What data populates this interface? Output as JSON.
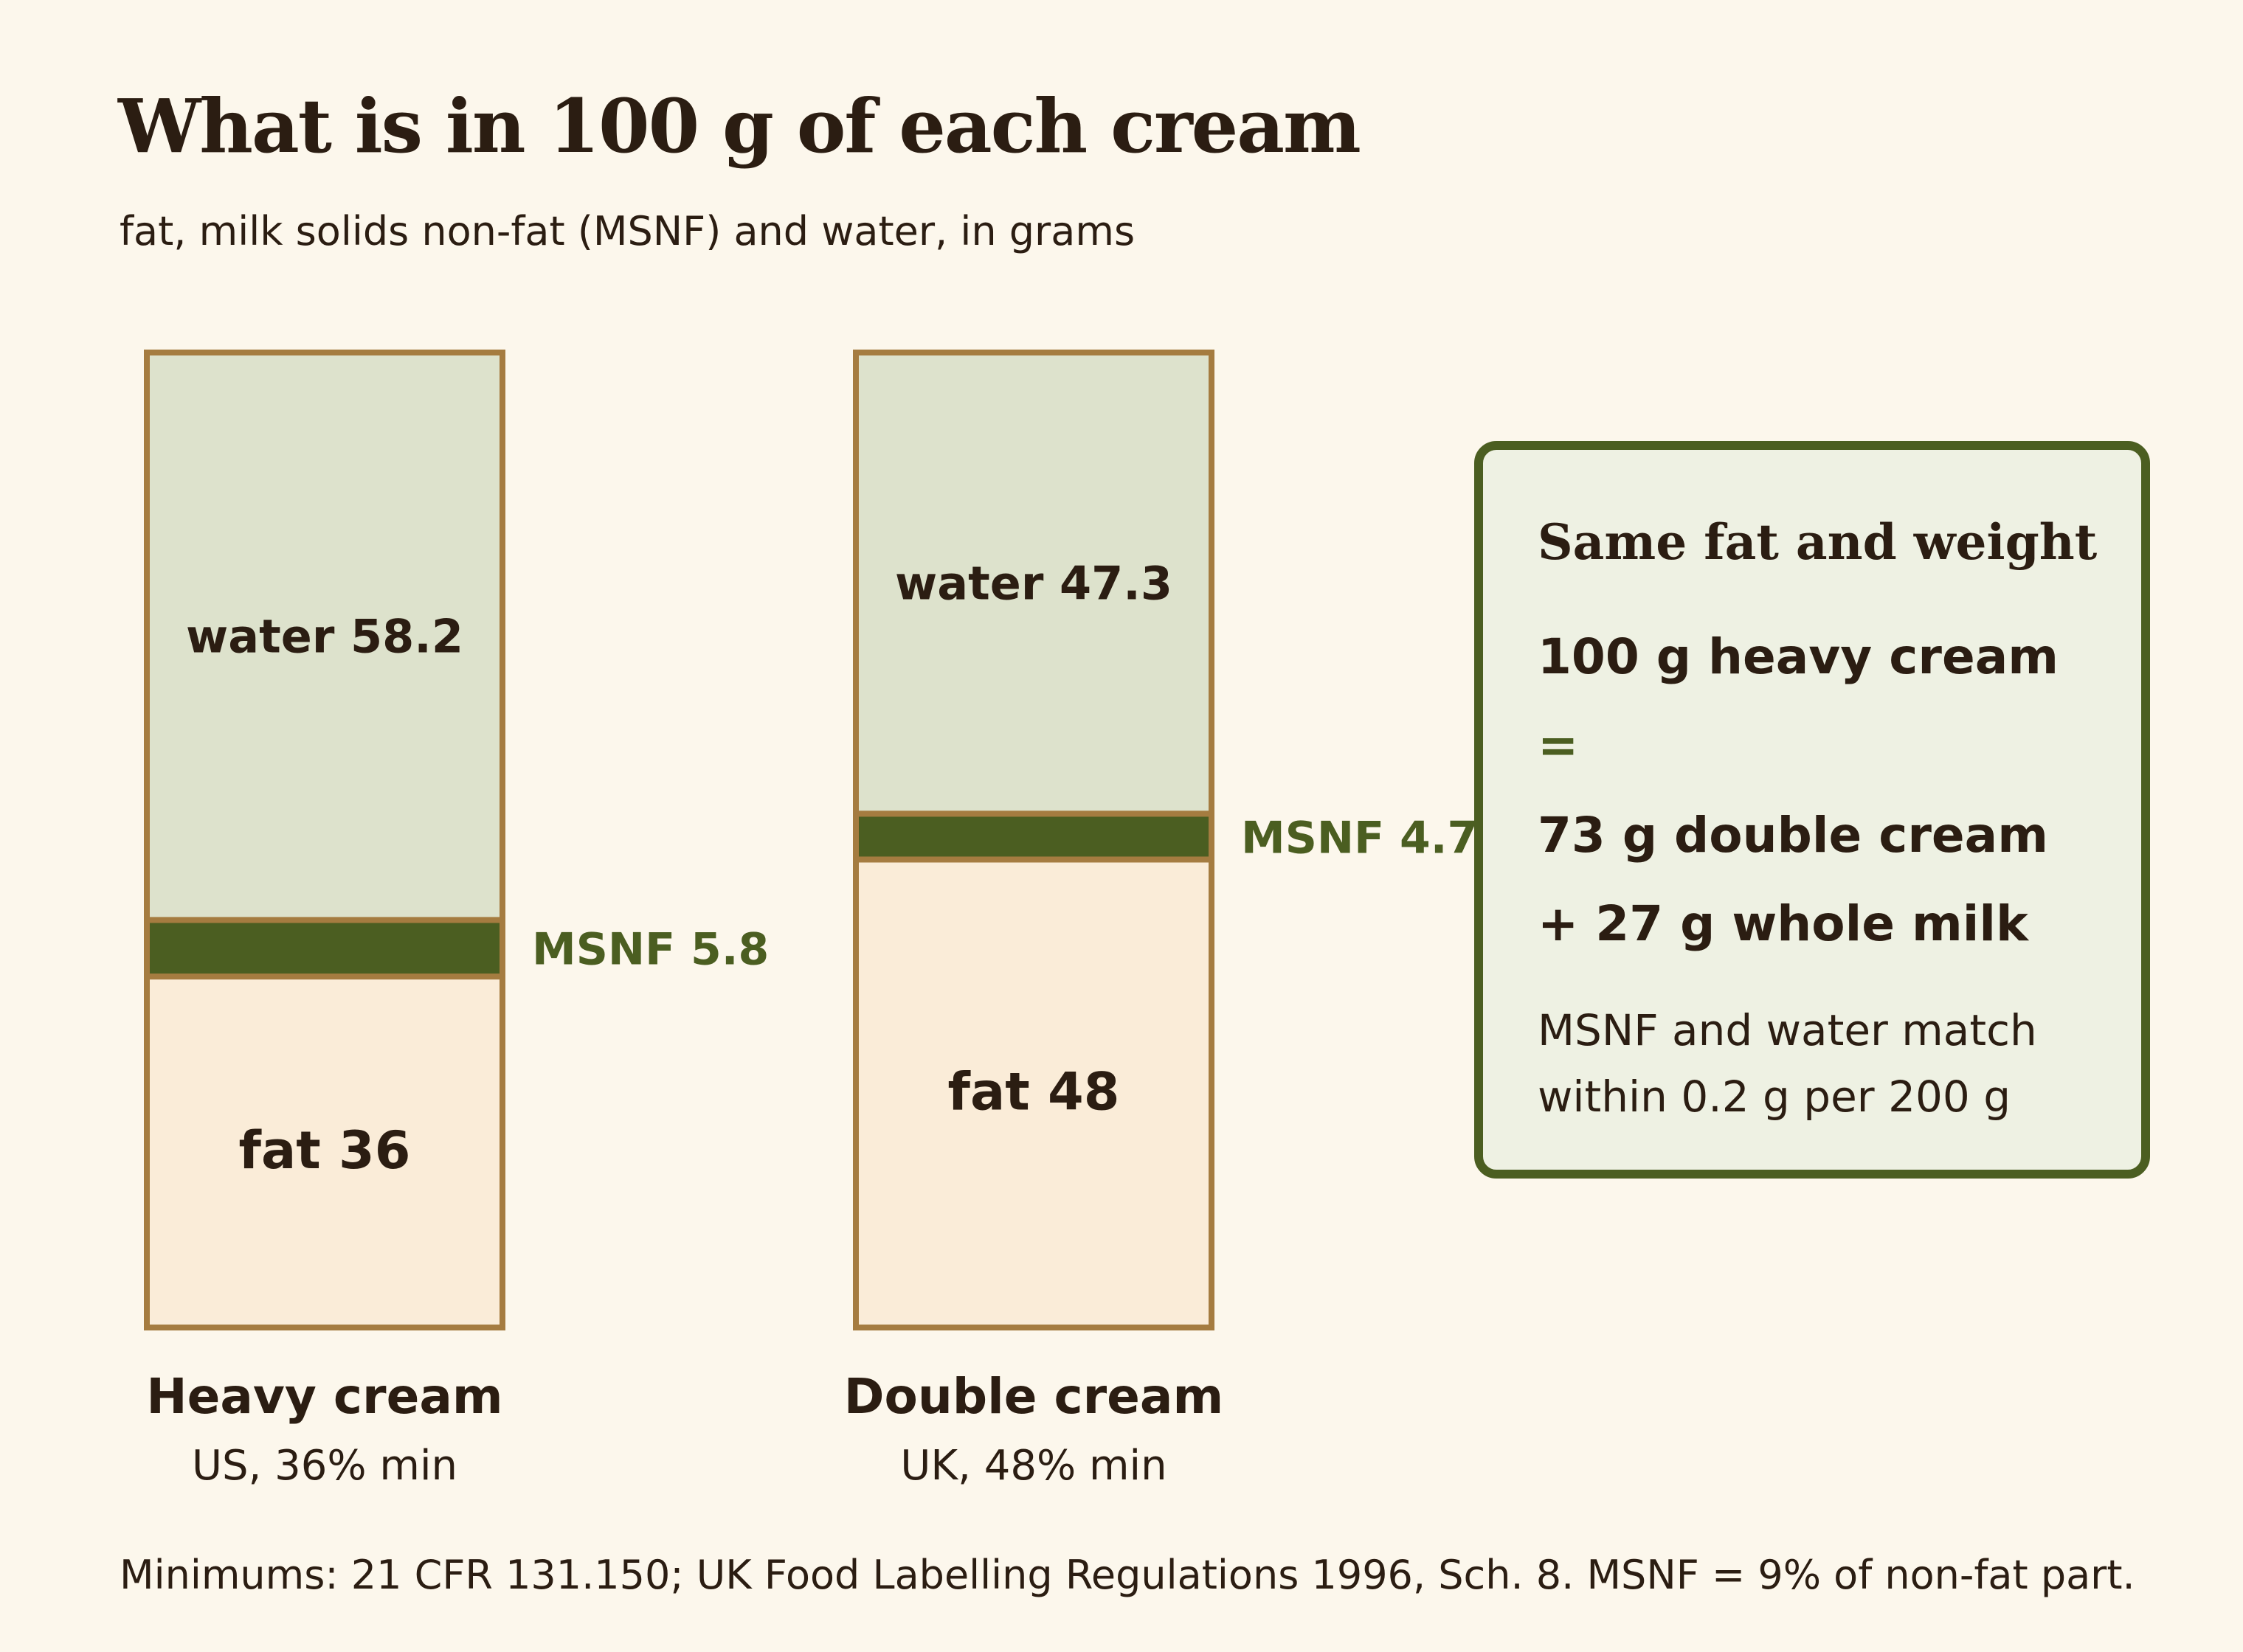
{
  "title": "What is in 100 g of each cream",
  "subtitle": "fat, milk solids non-fat (MSNF) and water, in grams",
  "chart_data": {
    "type": "bar",
    "stacked": true,
    "categories": [
      "Heavy cream",
      "Double cream"
    ],
    "category_sublabels": [
      "US, 36% min",
      "UK, 48% min"
    ],
    "series": [
      {
        "name": "fat",
        "values": [
          36,
          48
        ],
        "color": "#faecd8"
      },
      {
        "name": "MSNF",
        "values": [
          5.8,
          4.7
        ],
        "color": "#4b5e21"
      },
      {
        "name": "water",
        "values": [
          58.2,
          47.3
        ],
        "color": "#dde2cc"
      }
    ],
    "data_labels": [
      [
        "fat 36",
        "MSNF 5.8",
        "water 58.2"
      ],
      [
        "fat 48",
        "MSNF 4.7",
        "water 47.3"
      ]
    ],
    "ylim": [
      0,
      100
    ],
    "grid": false,
    "border_color": "#a57c40"
  },
  "callout": {
    "heading": "Same fat and weight",
    "line1": "100 g heavy cream",
    "equals": "=",
    "line2": "73 g double cream",
    "line3": "+ 27 g whole milk",
    "note": "MSNF and water match within 0.2 g per 200 g"
  },
  "footnote": "Minimums: 21 CFR 131.150; UK Food Labelling Regulations 1996, Sch. 8. MSNF = 9% of non-fat part."
}
